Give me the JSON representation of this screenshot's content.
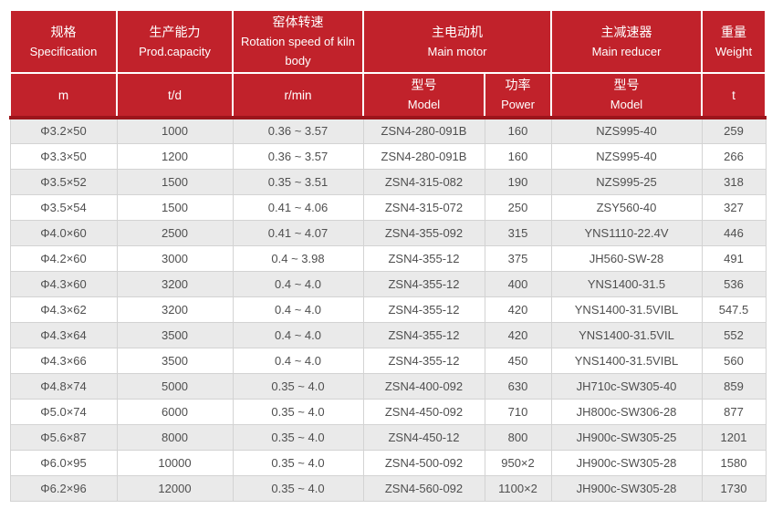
{
  "colors": {
    "header_bg": "#c1222b",
    "header_divider": "#9c151c",
    "header_text": "#ffffff",
    "row_alt_bg": "#eaeaea",
    "row_bg": "#ffffff",
    "body_text": "#4f4f4f",
    "body_border": "#d3d3d3",
    "page_bg": "#ffffff"
  },
  "header": {
    "spec_zh": "规格",
    "spec_en": "Specification",
    "spec_unit": "m",
    "capacity_zh": "生产能力",
    "capacity_en": "Prod.capacity",
    "capacity_unit": "t/d",
    "rotation_zh": "窑体转速",
    "rotation_en": "Rotation speed of kiln body",
    "rotation_unit": "r/min",
    "motor_zh": "主电动机",
    "motor_en": "Main motor",
    "motor_model_zh": "型号",
    "motor_model_en": "Model",
    "motor_power_zh": "功率",
    "motor_power_en": "Power",
    "reducer_zh": "主减速器",
    "reducer_en": "Main reducer",
    "reducer_model_zh": "型号",
    "reducer_model_en": "Model",
    "weight_zh": "重量",
    "weight_en": "Weight",
    "weight_unit": "t"
  },
  "chart_data": {
    "type": "table",
    "columns": [
      "规格 Specification (m)",
      "生产能力 Prod.capacity (t/d)",
      "窑体转速 Rotation speed of kiln body (r/min)",
      "主电动机 Main motor — 型号 Model",
      "主电动机 Main motor — 功率 Power",
      "主减速器 Main reducer — 型号 Model",
      "重量 Weight (t)"
    ],
    "rows": [
      [
        "Φ3.2×50",
        "1000",
        "0.36 ~ 3.57",
        "ZSN4-280-091B",
        "160",
        "NZS995-40",
        "259"
      ],
      [
        "Φ3.3×50",
        "1200",
        "0.36 ~ 3.57",
        "ZSN4-280-091B",
        "160",
        "NZS995-40",
        "266"
      ],
      [
        "Φ3.5×52",
        "1500",
        "0.35 ~ 3.51",
        "ZSN4-315-082",
        "190",
        "NZS995-25",
        "318"
      ],
      [
        "Φ3.5×54",
        "1500",
        "0.41 ~ 4.06",
        "ZSN4-315-072",
        "250",
        "ZSY560-40",
        "327"
      ],
      [
        "Φ4.0×60",
        "2500",
        "0.41 ~ 4.07",
        "ZSN4-355-092",
        "315",
        "YNS1110-22.4V",
        "446"
      ],
      [
        "Φ4.2×60",
        "3000",
        "0.4 ~ 3.98",
        "ZSN4-355-12",
        "375",
        "JH560-SW-28",
        "491"
      ],
      [
        "Φ4.3×60",
        "3200",
        "0.4 ~ 4.0",
        "ZSN4-355-12",
        "400",
        "YNS1400-31.5",
        "536"
      ],
      [
        "Φ4.3×62",
        "3200",
        "0.4 ~ 4.0",
        "ZSN4-355-12",
        "420",
        "YNS1400-31.5VIBL",
        "547.5"
      ],
      [
        "Φ4.3×64",
        "3500",
        "0.4 ~ 4.0",
        "ZSN4-355-12",
        "420",
        "YNS1400-31.5VIL",
        "552"
      ],
      [
        "Φ4.3×66",
        "3500",
        "0.4 ~ 4.0",
        "ZSN4-355-12",
        "450",
        "YNS1400-31.5VIBL",
        "560"
      ],
      [
        "Φ4.8×74",
        "5000",
        "0.35 ~ 4.0",
        "ZSN4-400-092",
        "630",
        "JH710c-SW305-40",
        "859"
      ],
      [
        "Φ5.0×74",
        "6000",
        "0.35 ~ 4.0",
        "ZSN4-450-092",
        "710",
        "JH800c-SW306-28",
        "877"
      ],
      [
        "Φ5.6×87",
        "8000",
        "0.35 ~ 4.0",
        "ZSN4-450-12",
        "800",
        "JH900c-SW305-25",
        "1201"
      ],
      [
        "Φ6.0×95",
        "10000",
        "0.35 ~ 4.0",
        "ZSN4-500-092",
        "950×2",
        "JH900c-SW305-28",
        "1580"
      ],
      [
        "Φ6.2×96",
        "12000",
        "0.35 ~ 4.0",
        "ZSN4-560-092",
        "1100×2",
        "JH900c-SW305-28",
        "1730"
      ]
    ]
  }
}
